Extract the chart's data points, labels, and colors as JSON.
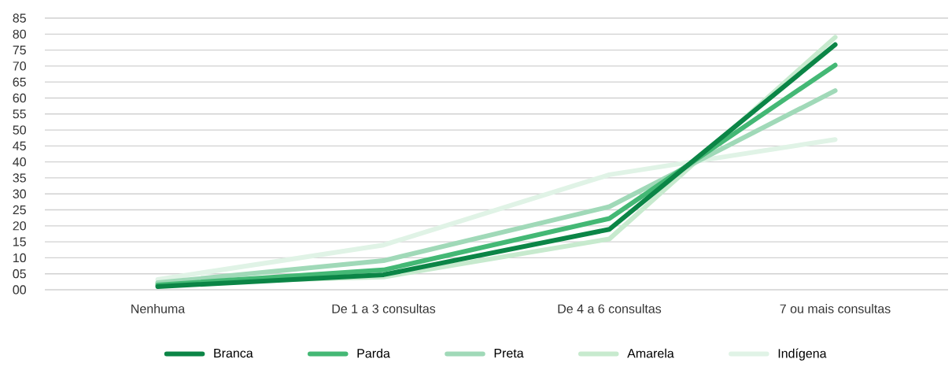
{
  "chart_data": {
    "type": "line",
    "categories": [
      "Nenhuma",
      "De 1 a 3 consultas",
      "De 4 a 6 consultas",
      "7 ou mais consultas"
    ],
    "series": [
      {
        "name": "Branca",
        "color": "#0b8546",
        "values": [
          1,
          4.7,
          18.9,
          76.7
        ]
      },
      {
        "name": "Parda",
        "color": "#44b875",
        "values": [
          1.5,
          6.2,
          22.3,
          70.3
        ]
      },
      {
        "name": "Preta",
        "color": "#a0d9b8",
        "values": [
          2.2,
          9.1,
          26,
          62.3
        ]
      },
      {
        "name": "Amarela",
        "color": "#c7eace",
        "values": [
          2,
          4,
          15.9,
          79
        ]
      },
      {
        "name": "Indígena",
        "color": "#e0f3e6",
        "values": [
          3.2,
          14,
          36,
          47
        ]
      }
    ],
    "ylim": [
      0,
      85
    ],
    "yticks": [
      {
        "value": 0,
        "label": "00"
      },
      {
        "value": 5,
        "label": "05"
      },
      10,
      15,
      20,
      25,
      30,
      35,
      40,
      45,
      50,
      55,
      60,
      65,
      70,
      75,
      80,
      85
    ],
    "grid": "y",
    "legend": "bottom",
    "marker": "none",
    "line_style": "solid"
  }
}
